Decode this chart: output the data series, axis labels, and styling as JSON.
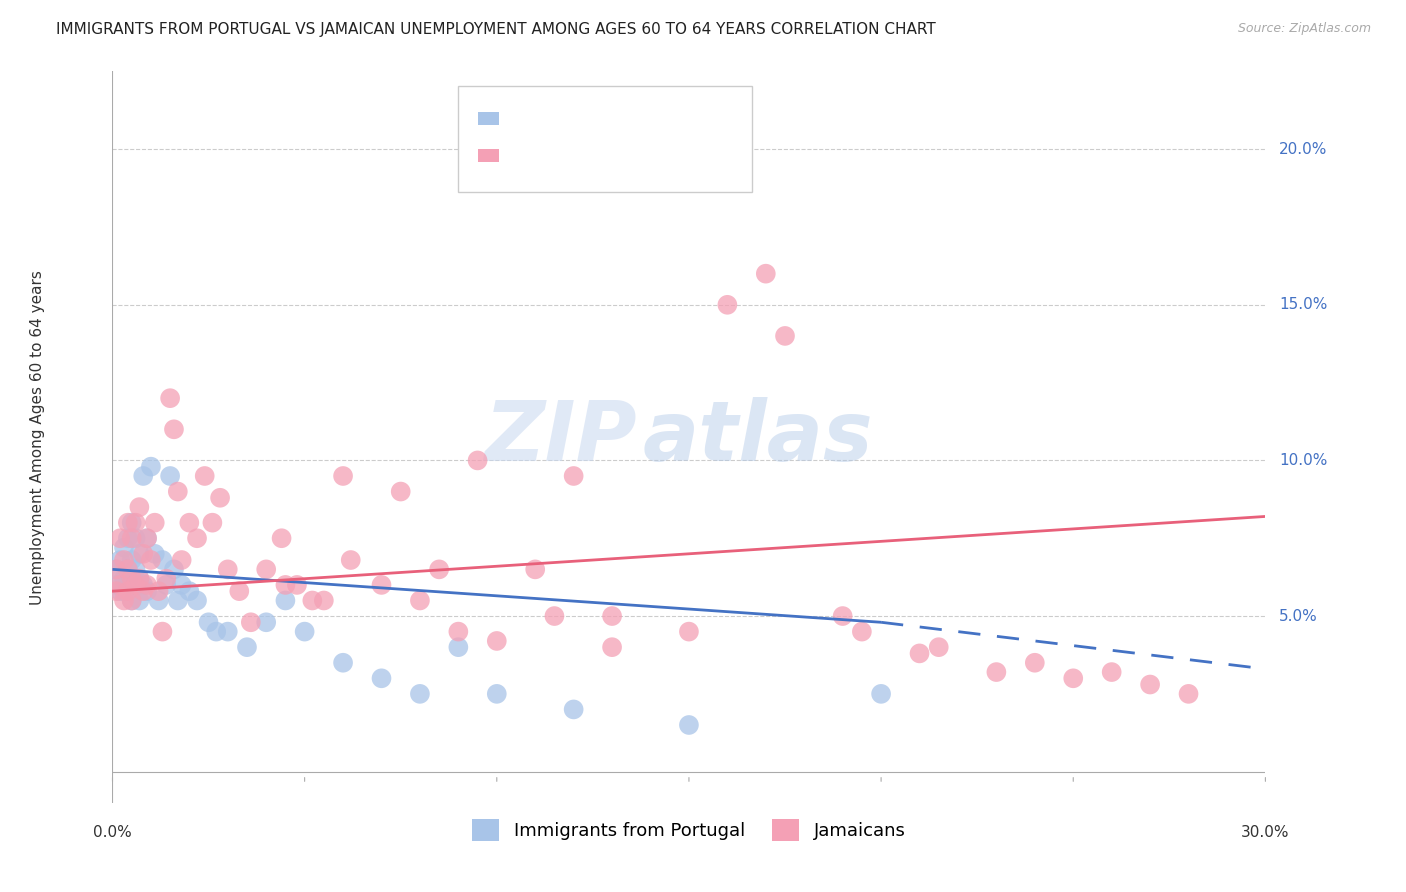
{
  "title": "IMMIGRANTS FROM PORTUGAL VS JAMAICAN UNEMPLOYMENT AMONG AGES 60 TO 64 YEARS CORRELATION CHART",
  "source": "Source: ZipAtlas.com",
  "ylabel": "Unemployment Among Ages 60 to 64 years",
  "ytick_labels": [
    "20.0%",
    "15.0%",
    "10.0%",
    "5.0%"
  ],
  "ytick_values": [
    0.2,
    0.15,
    0.1,
    0.05
  ],
  "xlim": [
    0.0,
    0.3
  ],
  "ylim": [
    -0.01,
    0.225
  ],
  "color_portugal": "#a8c4e8",
  "color_jamaicans": "#f4a0b5",
  "trendline_portugal_color": "#4472c4",
  "trendline_jamaicans_color": "#e8607a",
  "background_color": "#ffffff",
  "grid_color": "#cccccc",
  "axis_color": "#4472c4",
  "portugal_x": [
    0.001,
    0.001,
    0.002,
    0.002,
    0.003,
    0.003,
    0.003,
    0.004,
    0.004,
    0.004,
    0.005,
    0.005,
    0.005,
    0.005,
    0.006,
    0.006,
    0.006,
    0.007,
    0.007,
    0.007,
    0.008,
    0.008,
    0.009,
    0.009,
    0.01,
    0.011,
    0.012,
    0.013,
    0.014,
    0.015,
    0.016,
    0.017,
    0.018,
    0.02,
    0.022,
    0.025,
    0.027,
    0.03,
    0.035,
    0.04,
    0.045,
    0.05,
    0.06,
    0.07,
    0.08,
    0.09,
    0.1,
    0.12,
    0.15,
    0.2
  ],
  "portugal_y": [
    0.065,
    0.06,
    0.068,
    0.058,
    0.072,
    0.062,
    0.058,
    0.075,
    0.065,
    0.06,
    0.08,
    0.068,
    0.062,
    0.055,
    0.075,
    0.065,
    0.06,
    0.07,
    0.062,
    0.055,
    0.095,
    0.06,
    0.075,
    0.058,
    0.098,
    0.07,
    0.055,
    0.068,
    0.06,
    0.095,
    0.065,
    0.055,
    0.06,
    0.058,
    0.055,
    0.048,
    0.045,
    0.045,
    0.04,
    0.048,
    0.055,
    0.045,
    0.035,
    0.03,
    0.025,
    0.04,
    0.025,
    0.02,
    0.015,
    0.025
  ],
  "jamaicans_x": [
    0.001,
    0.001,
    0.002,
    0.002,
    0.003,
    0.003,
    0.004,
    0.004,
    0.004,
    0.005,
    0.005,
    0.005,
    0.006,
    0.006,
    0.007,
    0.007,
    0.008,
    0.008,
    0.009,
    0.009,
    0.01,
    0.011,
    0.012,
    0.013,
    0.014,
    0.015,
    0.016,
    0.017,
    0.018,
    0.02,
    0.022,
    0.024,
    0.026,
    0.028,
    0.03,
    0.033,
    0.036,
    0.04,
    0.044,
    0.048,
    0.055,
    0.062,
    0.07,
    0.08,
    0.09,
    0.1,
    0.115,
    0.13,
    0.15,
    0.17,
    0.19,
    0.21,
    0.23,
    0.25,
    0.27,
    0.28,
    0.195,
    0.215,
    0.24,
    0.26,
    0.16,
    0.175,
    0.06,
    0.075,
    0.11,
    0.13,
    0.045,
    0.052,
    0.095,
    0.12,
    0.085
  ],
  "jamaicans_y": [
    0.065,
    0.058,
    0.075,
    0.06,
    0.068,
    0.055,
    0.08,
    0.065,
    0.058,
    0.075,
    0.062,
    0.055,
    0.08,
    0.06,
    0.085,
    0.062,
    0.07,
    0.058,
    0.075,
    0.06,
    0.068,
    0.08,
    0.058,
    0.045,
    0.062,
    0.12,
    0.11,
    0.09,
    0.068,
    0.08,
    0.075,
    0.095,
    0.08,
    0.088,
    0.065,
    0.058,
    0.048,
    0.065,
    0.075,
    0.06,
    0.055,
    0.068,
    0.06,
    0.055,
    0.045,
    0.042,
    0.05,
    0.04,
    0.045,
    0.16,
    0.05,
    0.038,
    0.032,
    0.03,
    0.028,
    0.025,
    0.045,
    0.04,
    0.035,
    0.032,
    0.15,
    0.14,
    0.095,
    0.09,
    0.065,
    0.05,
    0.06,
    0.055,
    0.1,
    0.095,
    0.065
  ],
  "portugal_trend_x0": 0.0,
  "portugal_trend_y0": 0.065,
  "portugal_trend_x1": 0.2,
  "portugal_trend_y1": 0.048,
  "portugal_trend_xmax": 0.3,
  "portugal_trend_ymax": 0.033,
  "jamaicans_trend_x0": 0.0,
  "jamaicans_trend_y0": 0.058,
  "jamaicans_trend_x1": 0.3,
  "jamaicans_trend_y1": 0.082,
  "watermark_zip": "ZIP",
  "watermark_atlas": "atlas",
  "title_fontsize": 11,
  "label_fontsize": 11,
  "tick_fontsize": 11,
  "legend_fontsize": 13
}
